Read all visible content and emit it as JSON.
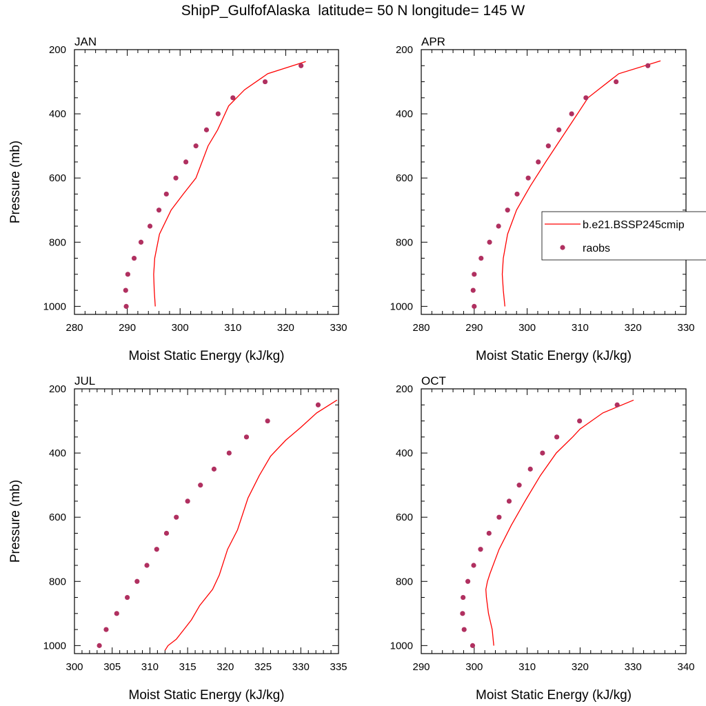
{
  "title": "ShipP_GulfofAlaska  latitude= 50 N longitude= 145 W",
  "colors": {
    "model": "#ff0000",
    "obs": "#b03060",
    "axis": "#000000",
    "background": "#ffffff"
  },
  "legend": {
    "model_label": "b.e21.BSSP245cmip",
    "obs_label": "raobs",
    "placement": "right of APR panel"
  },
  "chart_data": [
    {
      "type": "line",
      "panel_label": "JAN",
      "xlabel": "Moist Static Energy (kJ/kg)",
      "ylabel": "Pressure (mb)",
      "xlim": [
        280,
        330
      ],
      "ylim": [
        200,
        1025
      ],
      "y_inverted": true,
      "xticks": [
        280,
        290,
        300,
        310,
        320,
        330
      ],
      "yticks": [
        200,
        400,
        600,
        800,
        1000
      ],
      "series": [
        {
          "name": "b.e21.BSSP245cmip",
          "style": "line",
          "x": [
            295.3,
            295.1,
            295.0,
            295.2,
            296.1,
            298.3,
            300.6,
            303.0,
            305.3,
            307.1,
            309.2,
            312.2,
            316.6,
            323.8
          ],
          "y": [
            1000,
            950,
            900,
            850,
            775,
            700,
            650,
            600,
            500,
            450,
            375,
            325,
            275,
            237
          ]
        },
        {
          "name": "raobs",
          "style": "markers",
          "x": [
            289.8,
            289.7,
            290.1,
            291.3,
            292.6,
            294.3,
            296.0,
            297.4,
            299.2,
            301.1,
            303.0,
            305.0,
            307.2,
            310.0,
            316.1,
            322.9
          ],
          "y": [
            1000,
            950,
            900,
            850,
            800,
            750,
            700,
            650,
            600,
            550,
            500,
            450,
            400,
            350,
            300,
            250
          ]
        }
      ]
    },
    {
      "type": "line",
      "panel_label": "APR",
      "xlabel": "Moist Static Energy (kJ/kg)",
      "ylabel": "",
      "xlim": [
        280,
        330
      ],
      "ylim": [
        200,
        1025
      ],
      "y_inverted": true,
      "xticks": [
        280,
        290,
        300,
        310,
        320,
        330
      ],
      "yticks": [
        200,
        400,
        600,
        800,
        1000
      ],
      "series": [
        {
          "name": "b.e21.BSSP245cmip",
          "style": "line",
          "x": [
            295.8,
            295.5,
            295.3,
            295.5,
            296.3,
            298.0,
            300.6,
            303.5,
            306.5,
            309.5,
            311.5,
            313.8,
            317.3,
            325.2
          ],
          "y": [
            1000,
            950,
            900,
            850,
            775,
            700,
            625,
            550,
            475,
            400,
            350,
            320,
            275,
            235
          ]
        },
        {
          "name": "raobs",
          "style": "markers",
          "x": [
            290.0,
            289.8,
            290.0,
            291.3,
            292.9,
            294.6,
            296.3,
            298.1,
            300.2,
            302.1,
            304.0,
            306.0,
            308.4,
            311.1,
            316.8,
            322.8
          ],
          "y": [
            1000,
            950,
            900,
            850,
            800,
            750,
            700,
            650,
            600,
            550,
            500,
            450,
            400,
            350,
            300,
            250
          ]
        }
      ]
    },
    {
      "type": "line",
      "panel_label": "JUL",
      "xlabel": "Moist Static Energy (kJ/kg)",
      "ylabel": "Pressure (mb)",
      "xlim": [
        300,
        335
      ],
      "ylim": [
        200,
        1025
      ],
      "y_inverted": true,
      "xticks": [
        300,
        305,
        310,
        315,
        320,
        325,
        330,
        335
      ],
      "yticks": [
        200,
        400,
        600,
        800,
        1000
      ],
      "series": [
        {
          "name": "b.e21.BSSP245cmip",
          "style": "line",
          "x": [
            312.0,
            312.4,
            313.5,
            314.5,
            315.5,
            316.6,
            318.3,
            319.2,
            320.3,
            321.6,
            323.0,
            324.5,
            326.0,
            328.0,
            330.0,
            332.1,
            334.8
          ],
          "y": [
            1015,
            1000,
            980,
            950,
            920,
            875,
            825,
            780,
            700,
            640,
            540,
            470,
            410,
            360,
            320,
            275,
            235
          ]
        },
        {
          "name": "raobs",
          "style": "markers",
          "x": [
            303.3,
            304.2,
            305.6,
            307.0,
            308.3,
            309.6,
            310.9,
            312.2,
            313.5,
            315.0,
            316.7,
            318.5,
            320.5,
            322.8,
            325.6,
            332.3
          ],
          "y": [
            1000,
            950,
            900,
            850,
            800,
            750,
            700,
            650,
            600,
            550,
            500,
            450,
            400,
            350,
            300,
            250
          ]
        }
      ]
    },
    {
      "type": "line",
      "panel_label": "OCT",
      "xlabel": "Moist Static Energy (kJ/kg)",
      "ylabel": "",
      "xlim": [
        290,
        340
      ],
      "ylim": [
        200,
        1025
      ],
      "y_inverted": true,
      "xticks": [
        290,
        300,
        310,
        320,
        330,
        340
      ],
      "yticks": [
        200,
        400,
        600,
        800,
        1000
      ],
      "series": [
        {
          "name": "b.e21.BSSP245cmip",
          "style": "line",
          "x": [
            303.7,
            303.4,
            302.7,
            302.3,
            302.2,
            302.5,
            303.0,
            304.7,
            307.0,
            309.6,
            312.5,
            315.5,
            318.6,
            320.0,
            324.3,
            330.1
          ],
          "y": [
            1000,
            950,
            900,
            850,
            825,
            800,
            775,
            700,
            625,
            550,
            470,
            400,
            350,
            325,
            275,
            235
          ]
        },
        {
          "name": "raobs",
          "style": "markers",
          "x": [
            299.7,
            298.1,
            297.8,
            297.9,
            298.8,
            299.9,
            301.2,
            302.8,
            304.7,
            306.6,
            308.5,
            310.6,
            312.9,
            315.6,
            319.9,
            327.0
          ],
          "y": [
            1000,
            950,
            900,
            850,
            800,
            750,
            700,
            650,
            600,
            550,
            500,
            450,
            400,
            350,
            300,
            250
          ]
        }
      ]
    }
  ]
}
